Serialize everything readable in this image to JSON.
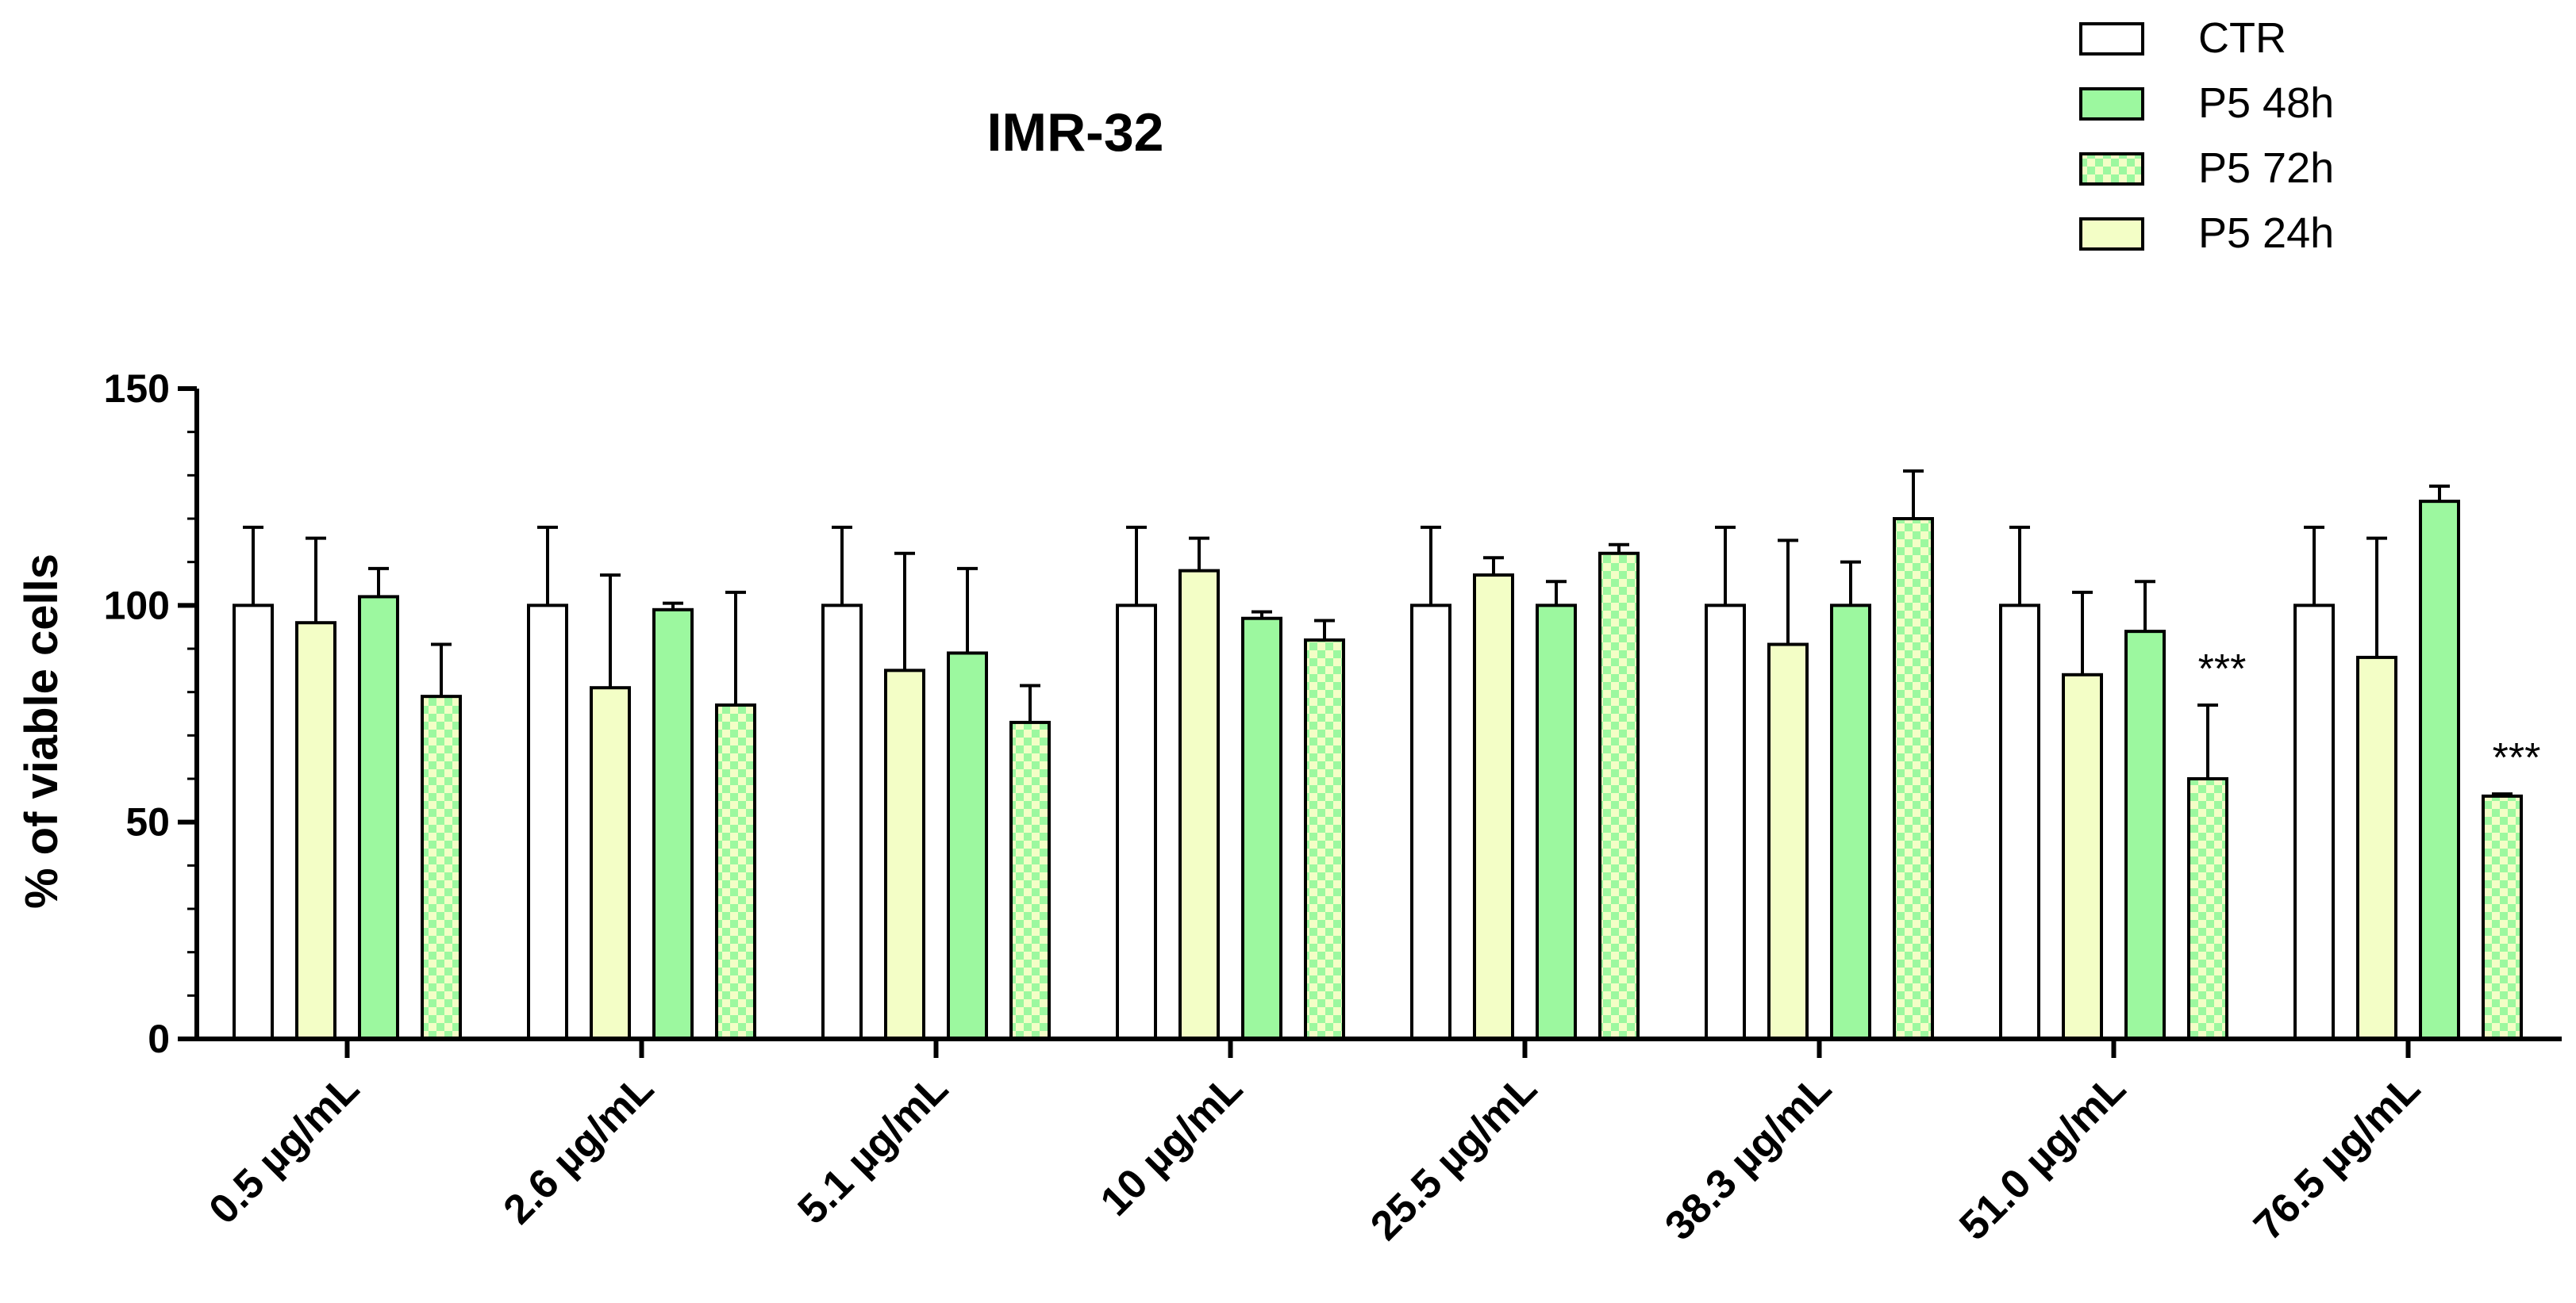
{
  "chart_data": {
    "type": "bar",
    "title": "IMR-32",
    "xlabel": "",
    "ylabel": "% of viable cells",
    "ylim": [
      0,
      150
    ],
    "yticks": [
      "0",
      "50",
      "100",
      "150"
    ],
    "ytick_values": [
      0,
      50,
      100,
      150
    ],
    "grid": false,
    "legend_position": "top-right",
    "categories": [
      "0.5 µg/mL",
      "2.6 µg/mL",
      "5.1 µg/mL",
      "10 µg/mL",
      "25.5 µg/mL",
      "38.3 µg/mL",
      "51.0 µg/mL",
      "76.5 µg/mL"
    ],
    "bar_order": [
      "CTR",
      "P5 24h",
      "P5 48h",
      "P5 72h"
    ],
    "series": [
      {
        "name": "CTR",
        "fill": "#ffffff",
        "pattern": "none",
        "values": [
          100,
          100,
          100,
          100,
          100,
          100,
          100,
          100
        ],
        "errors": [
          18,
          18,
          18,
          18,
          18,
          18,
          18,
          18
        ]
      },
      {
        "name": "P5 24h",
        "fill": "#f3fec6",
        "pattern": "none",
        "values": [
          96,
          81,
          85,
          108,
          107,
          91,
          84,
          88
        ],
        "errors": [
          19.5,
          26,
          27,
          7.5,
          4,
          24,
          19,
          27.5
        ]
      },
      {
        "name": "P5 48h",
        "fill": "#9cf89f",
        "pattern": "none",
        "values": [
          102,
          99,
          89,
          97,
          100,
          100,
          94,
          124
        ],
        "errors": [
          6.5,
          1.5,
          19.5,
          1.5,
          5.5,
          10,
          11.5,
          3.5
        ]
      },
      {
        "name": "P5 72h",
        "fill": "#f3fec6",
        "pattern": "checker",
        "pattern_color": "#9cf89f",
        "values": [
          79,
          77,
          73,
          92,
          112,
          120,
          60,
          56
        ],
        "errors": [
          12,
          26,
          8.5,
          4.5,
          2,
          11,
          17,
          0.5
        ]
      }
    ],
    "legend": [
      "CTR",
      "P5 48h",
      "P5 72h",
      "P5 24h"
    ],
    "annotations": [
      {
        "category": "51.0 µg/mL",
        "series": "P5 72h",
        "text": "***"
      },
      {
        "category": "76.5 µg/mL",
        "series": "P5 72h",
        "text": "***"
      }
    ]
  }
}
